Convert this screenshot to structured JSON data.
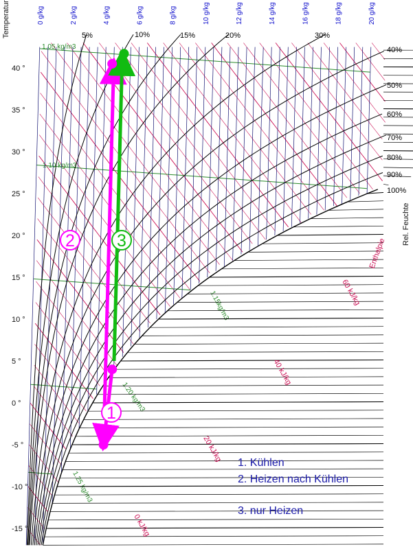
{
  "chart_data": {
    "type": "line",
    "title": "",
    "y_axis": {
      "label": "Temperatur",
      "range": [
        -17,
        45
      ],
      "ticks": [
        -15,
        -10,
        -5,
        0,
        5,
        10,
        15,
        20,
        25,
        30,
        35,
        40
      ],
      "tick_labels": [
        "-15 °",
        "-10 °",
        "-5 °",
        "0 °",
        "5 °",
        "10 °",
        "15 °",
        "20 °",
        "25 °",
        "30 °",
        "35 °",
        "40 °"
      ]
    },
    "x_axis": {
      "unit": "g/kg",
      "range": [
        0,
        20
      ],
      "ticks": [
        0,
        2,
        4,
        6,
        8,
        10,
        12,
        14,
        16,
        18,
        20
      ],
      "tick_labels": [
        "0 g/kg",
        "2 g/kg",
        "4 g/kg",
        "6 g/kg",
        "8 g/kg",
        "10 g/kg",
        "12 g/kg",
        "14 g/kg",
        "16 g/kg",
        "18 g/kg",
        "20 g/kg"
      ]
    },
    "relative_humidity": {
      "label": "Rel. Feuchte",
      "top_labels": [
        "5%",
        "10%",
        "15%",
        "20%",
        "30%"
      ],
      "right_labels": [
        "40%",
        "50%",
        "60%",
        "70%",
        "80%",
        "90%",
        "100%"
      ]
    },
    "enthalpy": {
      "label": "Enthalpie",
      "values": [
        0,
        20,
        40,
        60
      ],
      "labels": [
        "0 kJ/kg",
        "20 kJ/kg",
        "40 kJ/kg",
        "60 kJ/kg"
      ]
    },
    "density": {
      "labels": [
        "1.05 kg/m3",
        "1.10 kg/m3",
        "1.15kg/m3",
        "1.20 kg/m3",
        "1.25 kg/m3"
      ]
    },
    "processes": [
      {
        "marker": "1",
        "color": "#ff00ff",
        "from": {
          "x": 4.9,
          "y": 4
        },
        "to": {
          "x": 4.5,
          "y": -5
        }
      },
      {
        "marker": "2",
        "color": "#ff00ff",
        "from": {
          "x": 4.5,
          "y": -0.5
        },
        "to": {
          "x": 4.5,
          "y": 40.5
        }
      },
      {
        "marker": "3",
        "color": "#11bb11",
        "from": {
          "x": 5.0,
          "y": 5
        },
        "to": {
          "x": 5.0,
          "y": 41.5
        }
      }
    ],
    "points": [
      {
        "x": 4.9,
        "y": 4,
        "color": "#ff00ff"
      },
      {
        "x": 4.5,
        "y": -5,
        "color": "#ff00ff"
      },
      {
        "x": 4.4,
        "y": 40.5,
        "color": "#ff00ff"
      },
      {
        "x": 5.1,
        "y": 41.7,
        "color": "#11bb11"
      }
    ],
    "legend": [
      "1. Kühlen",
      "2. Heizen nach Kühlen",
      "3. nur Heizen"
    ],
    "colors": {
      "isotherm": "#000000",
      "moisture": "#101070",
      "enthalpy": "#cc1155",
      "density": "#2a8a2a",
      "axis_label_y": "#111111",
      "axis_label_x": "#1010cc",
      "legend_text": "#1a1aa8"
    }
  }
}
